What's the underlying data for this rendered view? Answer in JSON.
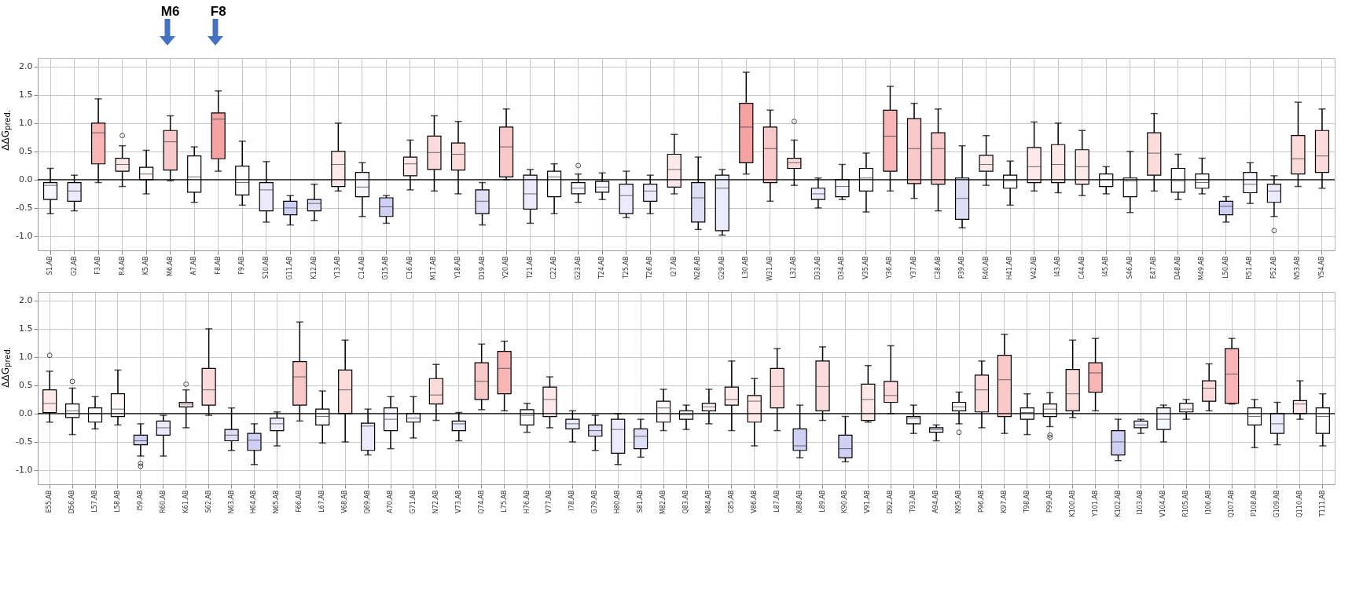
{
  "chart_data": [
    {
      "type": "box",
      "ylabel": "ΔΔG$_{pred.}$",
      "ylim": [
        -1.25,
        2.15
      ],
      "yticks": [
        {
          "value": -1,
          "label": "-1.0"
        },
        -0.5,
        {
          "value": 0,
          "label": "0.0"
        },
        0.5,
        {
          "value": 1,
          "label": "1.0"
        },
        1.5,
        {
          "value": 2,
          "label": "2.0"
        }
      ],
      "grid": true,
      "ref_lines": [
        {
          "axis": "y",
          "value": 0,
          "color": "#000000"
        }
      ],
      "annotations": [
        "M6",
        "F8"
      ],
      "categories": [
        "S1.AB",
        "G2.AB",
        "F3.AB",
        "R4.AB",
        "K5.AB",
        "M6.AB",
        "A7.AB",
        "F8.AB",
        "F9.AB",
        "S10.AB",
        "G11.AB",
        "K12.AB",
        "Y13.AB",
        "C14.AB",
        "G15.AB",
        "C16.AB",
        "M17.AB",
        "Y18.AB",
        "D19.AB",
        "Y20.AB",
        "T21.AB",
        "C22.AB",
        "G23.AB",
        "T24.AB",
        "T25.AB",
        "T26.AB",
        "I27.AB",
        "N28.AB",
        "G29.AB",
        "L30.AB",
        "W31.AB",
        "L32.AB",
        "D33.AB",
        "D34.AB",
        "V35.AB",
        "Y36.AB",
        "Y37.AB",
        "C38.AB",
        "P39.AB",
        "R40.AB",
        "H41.AB",
        "V42.AB",
        "I43.AB",
        "C44.AB",
        "I45.AB",
        "S46.AB",
        "E47.AB",
        "D48.AB",
        "M49.AB",
        "L50.AB",
        "R51.AB",
        "P52.AB",
        "N53.AB",
        "Y54.AB"
      ],
      "colors": [
        "#f6f6fd",
        "#ebebfb",
        "#f7b5b5",
        "#fde9e9",
        "#fdf7f7",
        "#f9c8c8",
        "#ffffff",
        "#f4a3a3",
        "#ffffff",
        "#ebebfb",
        "#d0d0f4",
        "#dedef7",
        "#fde9e9",
        "#f6f6fd",
        "#d0d0f4",
        "#fde9e9",
        "#fbdada",
        "#fbdada",
        "#dedef7",
        "#f9c8c8",
        "#ebebfb",
        "#ffffff",
        "#f6f6fd",
        "#f6f6fd",
        "#ebebfb",
        "#ebebfb",
        "#fde9e9",
        "#dedef7",
        "#ebebfb",
        "#f4a3a3",
        "#f9c8c8",
        "#fbdada",
        "#ebebfb",
        "#f6f6fd",
        "#ffffff",
        "#f7b5b5",
        "#f9c8c8",
        "#f9c8c8",
        "#dedef7",
        "#fde9e9",
        "#ffffff",
        "#fde9e9",
        "#fde9e9",
        "#fde9e9",
        "#ffffff",
        "#ffffff",
        "#fbdada",
        "#ffffff",
        "#ffffff",
        "#d0d0f4",
        "#f6f6fd",
        "#ebebfb",
        "#fbdada",
        "#fbdada"
      ],
      "boxes": [
        {
          "low": -0.6,
          "q1": -0.35,
          "median": -0.1,
          "q3": -0.05,
          "high": 0.2
        },
        {
          "low": -0.55,
          "q1": -0.38,
          "median": -0.2,
          "q3": -0.05,
          "high": 0.08
        },
        {
          "low": -0.05,
          "q1": 0.28,
          "median": 0.83,
          "q3": 1.0,
          "high": 1.43
        },
        {
          "low": -0.12,
          "q1": 0.15,
          "median": 0.27,
          "q3": 0.38,
          "high": 0.6,
          "outliers": [
            0.78
          ]
        },
        {
          "low": -0.25,
          "q1": 0.0,
          "median": 0.1,
          "q3": 0.22,
          "high": 0.52
        },
        {
          "low": -0.02,
          "q1": 0.17,
          "median": 0.67,
          "q3": 0.87,
          "high": 1.13
        },
        {
          "low": -0.4,
          "q1": -0.22,
          "median": 0.05,
          "q3": 0.42,
          "high": 0.58
        },
        {
          "low": 0.15,
          "q1": 0.37,
          "median": 1.07,
          "q3": 1.18,
          "high": 1.57
        },
        {
          "low": -0.45,
          "q1": -0.27,
          "median": -0.05,
          "q3": 0.24,
          "high": 0.68
        },
        {
          "low": -0.75,
          "q1": -0.55,
          "median": -0.18,
          "q3": -0.05,
          "high": 0.32
        },
        {
          "low": -0.8,
          "q1": -0.62,
          "median": -0.5,
          "q3": -0.38,
          "high": -0.28
        },
        {
          "low": -0.72,
          "q1": -0.55,
          "median": -0.42,
          "q3": -0.35,
          "high": -0.08
        },
        {
          "low": -0.2,
          "q1": -0.12,
          "median": 0.27,
          "q3": 0.5,
          "high": 1.0
        },
        {
          "low": -0.65,
          "q1": -0.3,
          "median": -0.13,
          "q3": 0.13,
          "high": 0.3
        },
        {
          "low": -0.77,
          "q1": -0.65,
          "median": -0.48,
          "q3": -0.32,
          "high": -0.28
        },
        {
          "low": -0.18,
          "q1": 0.07,
          "median": 0.28,
          "q3": 0.4,
          "high": 0.7
        },
        {
          "low": -0.2,
          "q1": 0.18,
          "median": 0.48,
          "q3": 0.77,
          "high": 1.13
        },
        {
          "low": -0.25,
          "q1": 0.17,
          "median": 0.45,
          "q3": 0.65,
          "high": 1.03
        },
        {
          "low": -0.8,
          "q1": -0.6,
          "median": -0.38,
          "q3": -0.18,
          "high": -0.05
        },
        {
          "low": 0.0,
          "q1": 0.05,
          "median": 0.58,
          "q3": 0.93,
          "high": 1.25
        },
        {
          "low": -0.77,
          "q1": -0.52,
          "median": -0.25,
          "q3": 0.08,
          "high": 0.18
        },
        {
          "low": -0.6,
          "q1": -0.3,
          "median": 0.05,
          "q3": 0.15,
          "high": 0.28
        },
        {
          "low": -0.4,
          "q1": -0.25,
          "median": -0.15,
          "q3": -0.05,
          "high": 0.1,
          "outliers": [
            0.25
          ]
        },
        {
          "low": -0.35,
          "q1": -0.22,
          "median": -0.13,
          "q3": -0.03,
          "high": 0.12
        },
        {
          "low": -0.67,
          "q1": -0.6,
          "median": -0.28,
          "q3": -0.08,
          "high": 0.15
        },
        {
          "low": -0.6,
          "q1": -0.38,
          "median": -0.2,
          "q3": -0.08,
          "high": 0.08
        },
        {
          "low": -0.25,
          "q1": -0.13,
          "median": 0.18,
          "q3": 0.45,
          "high": 0.8
        },
        {
          "low": -0.88,
          "q1": -0.75,
          "median": -0.32,
          "q3": -0.05,
          "high": 0.4
        },
        {
          "low": -0.98,
          "q1": -0.9,
          "median": -0.15,
          "q3": 0.08,
          "high": 0.18
        },
        {
          "low": 0.1,
          "q1": 0.3,
          "median": 0.93,
          "q3": 1.35,
          "high": 1.9
        },
        {
          "low": -0.38,
          "q1": -0.05,
          "median": 0.55,
          "q3": 0.93,
          "high": 1.23
        },
        {
          "low": -0.1,
          "q1": 0.2,
          "median": 0.3,
          "q3": 0.38,
          "high": 0.7,
          "outliers": [
            1.03
          ]
        },
        {
          "low": -0.5,
          "q1": -0.35,
          "median": -0.25,
          "q3": -0.15,
          "high": 0.03
        },
        {
          "low": -0.35,
          "q1": -0.3,
          "median": -0.12,
          "q3": 0.0,
          "high": 0.27
        },
        {
          "low": -0.57,
          "q1": -0.2,
          "median": 0.03,
          "q3": 0.2,
          "high": 0.47
        },
        {
          "low": -0.2,
          "q1": 0.15,
          "median": 0.77,
          "q3": 1.23,
          "high": 1.65
        },
        {
          "low": -0.33,
          "q1": -0.07,
          "median": 0.55,
          "q3": 1.08,
          "high": 1.35
        },
        {
          "low": -0.55,
          "q1": -0.08,
          "median": 0.55,
          "q3": 0.83,
          "high": 1.25
        },
        {
          "low": -0.85,
          "q1": -0.7,
          "median": -0.33,
          "q3": 0.03,
          "high": 0.6
        },
        {
          "low": -0.1,
          "q1": 0.15,
          "median": 0.27,
          "q3": 0.43,
          "high": 0.78
        },
        {
          "low": -0.45,
          "q1": -0.15,
          "median": -0.02,
          "q3": 0.08,
          "high": 0.33
        },
        {
          "low": -0.2,
          "q1": -0.05,
          "median": 0.23,
          "q3": 0.57,
          "high": 1.02
        },
        {
          "low": -0.23,
          "q1": -0.05,
          "median": 0.27,
          "q3": 0.62,
          "high": 1.0
        },
        {
          "low": -0.28,
          "q1": -0.08,
          "median": 0.23,
          "q3": 0.53,
          "high": 0.87
        },
        {
          "low": -0.25,
          "q1": -0.12,
          "median": 0.0,
          "q3": 0.1,
          "high": 0.23
        },
        {
          "low": -0.58,
          "q1": -0.3,
          "median": -0.02,
          "q3": 0.03,
          "high": 0.5
        },
        {
          "low": -0.2,
          "q1": 0.08,
          "median": 0.47,
          "q3": 0.83,
          "high": 1.17
        },
        {
          "low": -0.35,
          "q1": -0.22,
          "median": -0.02,
          "q3": 0.2,
          "high": 0.45
        },
        {
          "low": -0.25,
          "q1": -0.15,
          "median": -0.05,
          "q3": 0.1,
          "high": 0.38
        },
        {
          "low": -0.75,
          "q1": -0.62,
          "median": -0.47,
          "q3": -0.38,
          "high": -0.3
        },
        {
          "low": -0.42,
          "q1": -0.23,
          "median": -0.08,
          "q3": 0.13,
          "high": 0.3
        },
        {
          "low": -0.65,
          "q1": -0.4,
          "median": -0.2,
          "q3": -0.08,
          "high": 0.07,
          "outliers": [
            -0.9
          ]
        },
        {
          "low": -0.12,
          "q1": 0.1,
          "median": 0.37,
          "q3": 0.78,
          "high": 1.37
        },
        {
          "low": -0.15,
          "q1": 0.13,
          "median": 0.42,
          "q3": 0.87,
          "high": 1.25
        }
      ]
    },
    {
      "type": "box",
      "ylabel": "ΔΔG$_{pred.}$",
      "ylim": [
        -1.25,
        2.15
      ],
      "yticks": [
        {
          "value": -1,
          "label": "-1.0"
        },
        -0.5,
        {
          "value": 0,
          "label": "0.0"
        },
        0.5,
        {
          "value": 1,
          "label": "1.0"
        },
        1.5,
        {
          "value": 2,
          "label": "2.0"
        }
      ],
      "grid": true,
      "ref_lines": [
        {
          "axis": "y",
          "value": 0,
          "color": "#000000"
        }
      ],
      "categories": [
        "E55.AB",
        "D56.AB",
        "L57.AB",
        "L58.AB",
        "I59.AB",
        "R60.AB",
        "K61.AB",
        "S62.AB",
        "N63.AB",
        "H64.AB",
        "N65.AB",
        "F66.AB",
        "L67.AB",
        "V68.AB",
        "Q69.AB",
        "A70.AB",
        "G71.AB",
        "N72.AB",
        "V73.AB",
        "Q74.AB",
        "L75.AB",
        "H76.AB",
        "V77.AB",
        "I78.AB",
        "G79.AB",
        "H80.AB",
        "S81.AB",
        "M82.AB",
        "Q83.AB",
        "N84.AB",
        "C85.AB",
        "V86.AB",
        "L87.AB",
        "K88.AB",
        "L89.AB",
        "K90.AB",
        "V91.AB",
        "D92.AB",
        "T93.AB",
        "A94.AB",
        "N95.AB",
        "P96.AB",
        "K97.AB",
        "T98.AB",
        "P99.AB",
        "K100.AB",
        "Y101.AB",
        "K102.AB",
        "I103.AB",
        "V104.AB",
        "R105.AB",
        "I106.AB",
        "Q107.AB",
        "P108.AB",
        "G109.AB",
        "Q110.AB",
        "T111.AB"
      ],
      "colors": [
        "#fde9e9",
        "#ffffff",
        "#ffffff",
        "#fdf7f7",
        "#d0d0f4",
        "#ebebfb",
        "#fde9e9",
        "#fbdada",
        "#dedef7",
        "#d0d0f4",
        "#ebebfb",
        "#f9c8c8",
        "#ffffff",
        "#fbdada",
        "#ebebfb",
        "#f6f6fd",
        "#f6f6fd",
        "#fbdada",
        "#ebebfb",
        "#f9c8c8",
        "#f7b5b5",
        "#ffffff",
        "#fde9e9",
        "#ebebfb",
        "#dedef7",
        "#ebebfb",
        "#dedef7",
        "#fdf7f7",
        "#ffffff",
        "#fdf7f7",
        "#fde9e9",
        "#fde9e9",
        "#fbdada",
        "#d0d0f4",
        "#fbdada",
        "#d0d0f4",
        "#fde9e9",
        "#fbdada",
        "#f6f6fd",
        "#ebebfb",
        "#fdf7f7",
        "#fbdada",
        "#f9c8c8",
        "#ffffff",
        "#fdf7f7",
        "#fbdada",
        "#f7b5b5",
        "#d0d0f4",
        "#ebebfb",
        "#f6f6fd",
        "#fdf7f7",
        "#fbdada",
        "#f7b5b5",
        "#ffffff",
        "#ebebfb",
        "#fde9e9",
        "#ffffff"
      ],
      "boxes": [
        {
          "low": -0.15,
          "q1": 0.02,
          "median": 0.18,
          "q3": 0.42,
          "high": 0.75,
          "outliers": [
            1.03
          ]
        },
        {
          "low": -0.37,
          "q1": -0.07,
          "median": 0.05,
          "q3": 0.17,
          "high": 0.45,
          "outliers": [
            0.57
          ]
        },
        {
          "low": -0.27,
          "q1": -0.15,
          "median": 0.0,
          "q3": 0.1,
          "high": 0.3
        },
        {
          "low": -0.2,
          "q1": -0.05,
          "median": 0.08,
          "q3": 0.35,
          "high": 0.77
        },
        {
          "low": -0.75,
          "q1": -0.55,
          "median": -0.48,
          "q3": -0.38,
          "high": -0.18,
          "outliers": [
            -0.88,
            -0.93
          ]
        },
        {
          "low": -0.75,
          "q1": -0.38,
          "median": -0.25,
          "q3": -0.13,
          "high": -0.03
        },
        {
          "low": -0.25,
          "q1": 0.12,
          "median": 0.17,
          "q3": 0.2,
          "high": 0.42,
          "outliers": [
            0.52
          ]
        },
        {
          "low": -0.03,
          "q1": 0.15,
          "median": 0.42,
          "q3": 0.8,
          "high": 1.5
        },
        {
          "low": -0.65,
          "q1": -0.48,
          "median": -0.38,
          "q3": -0.28,
          "high": 0.1
        },
        {
          "low": -0.9,
          "q1": -0.65,
          "median": -0.47,
          "q3": -0.35,
          "high": -0.18
        },
        {
          "low": -0.57,
          "q1": -0.3,
          "median": -0.18,
          "q3": -0.08,
          "high": 0.03
        },
        {
          "low": -0.13,
          "q1": 0.15,
          "median": 0.65,
          "q3": 0.92,
          "high": 1.62
        },
        {
          "low": -0.52,
          "q1": -0.2,
          "median": -0.05,
          "q3": 0.08,
          "high": 0.4
        },
        {
          "low": -0.5,
          "q1": 0.0,
          "median": 0.42,
          "q3": 0.77,
          "high": 1.3
        },
        {
          "low": -0.73,
          "q1": -0.65,
          "median": -0.22,
          "q3": -0.17,
          "high": 0.08
        },
        {
          "low": -0.62,
          "q1": -0.3,
          "median": -0.1,
          "q3": 0.1,
          "high": 0.3
        },
        {
          "low": -0.43,
          "q1": -0.15,
          "median": -0.08,
          "q3": 0.0,
          "high": 0.3
        },
        {
          "low": -0.12,
          "q1": 0.17,
          "median": 0.33,
          "q3": 0.62,
          "high": 0.87
        },
        {
          "low": -0.48,
          "q1": -0.3,
          "median": -0.18,
          "q3": -0.13,
          "high": 0.02
        },
        {
          "low": 0.07,
          "q1": 0.25,
          "median": 0.57,
          "q3": 0.9,
          "high": 1.23
        },
        {
          "low": 0.05,
          "q1": 0.35,
          "median": 0.8,
          "q3": 1.1,
          "high": 1.28
        },
        {
          "low": -0.33,
          "q1": -0.2,
          "median": -0.03,
          "q3": 0.07,
          "high": 0.18
        },
        {
          "low": -0.25,
          "q1": -0.05,
          "median": 0.25,
          "q3": 0.47,
          "high": 0.65
        },
        {
          "low": -0.5,
          "q1": -0.27,
          "median": -0.18,
          "q3": -0.1,
          "high": 0.05
        },
        {
          "low": -0.65,
          "q1": -0.4,
          "median": -0.3,
          "q3": -0.2,
          "high": -0.03
        },
        {
          "low": -0.9,
          "q1": -0.7,
          "median": -0.28,
          "q3": -0.1,
          "high": 0.0
        },
        {
          "low": -0.77,
          "q1": -0.62,
          "median": -0.4,
          "q3": -0.27,
          "high": -0.1
        },
        {
          "low": -0.3,
          "q1": -0.15,
          "median": 0.1,
          "q3": 0.22,
          "high": 0.43
        },
        {
          "low": -0.28,
          "q1": -0.1,
          "median": -0.02,
          "q3": 0.05,
          "high": 0.15
        },
        {
          "low": -0.18,
          "q1": 0.05,
          "median": 0.12,
          "q3": 0.18,
          "high": 0.43
        },
        {
          "low": -0.3,
          "q1": 0.15,
          "median": 0.25,
          "q3": 0.47,
          "high": 0.93
        },
        {
          "low": -0.57,
          "q1": -0.15,
          "median": 0.22,
          "q3": 0.32,
          "high": 0.62
        },
        {
          "low": -0.3,
          "q1": 0.1,
          "median": 0.48,
          "q3": 0.8,
          "high": 1.15
        },
        {
          "low": -0.78,
          "q1": -0.65,
          "median": -0.57,
          "q3": -0.27,
          "high": 0.15
        },
        {
          "low": -0.12,
          "q1": 0.05,
          "median": 0.48,
          "q3": 0.93,
          "high": 1.18
        },
        {
          "low": -0.85,
          "q1": -0.78,
          "median": -0.62,
          "q3": -0.38,
          "high": -0.05
        },
        {
          "low": -0.15,
          "q1": -0.12,
          "median": 0.25,
          "q3": 0.52,
          "high": 0.85
        },
        {
          "low": 0.0,
          "q1": 0.2,
          "median": 0.32,
          "q3": 0.57,
          "high": 1.2
        },
        {
          "low": -0.35,
          "q1": -0.18,
          "median": -0.08,
          "q3": -0.05,
          "high": 0.15
        },
        {
          "low": -0.48,
          "q1": -0.33,
          "median": -0.28,
          "q3": -0.25,
          "high": -0.2
        },
        {
          "low": -0.18,
          "q1": 0.05,
          "median": 0.12,
          "q3": 0.2,
          "high": 0.38,
          "outliers": [
            -0.33
          ]
        },
        {
          "low": -0.25,
          "q1": 0.03,
          "median": 0.42,
          "q3": 0.68,
          "high": 0.93
        },
        {
          "low": -0.35,
          "q1": -0.05,
          "median": 0.6,
          "q3": 1.03,
          "high": 1.4
        },
        {
          "low": -0.37,
          "q1": -0.1,
          "median": 0.02,
          "q3": 0.1,
          "high": 0.35
        },
        {
          "low": -0.23,
          "q1": -0.05,
          "median": 0.08,
          "q3": 0.17,
          "high": 0.37,
          "outliers": [
            -0.38,
            -0.42
          ]
        },
        {
          "low": -0.07,
          "q1": 0.05,
          "median": 0.35,
          "q3": 0.78,
          "high": 1.3
        },
        {
          "low": 0.05,
          "q1": 0.38,
          "median": 0.72,
          "q3": 0.9,
          "high": 1.33
        },
        {
          "low": -0.83,
          "q1": -0.73,
          "median": -0.5,
          "q3": -0.3,
          "high": -0.1
        },
        {
          "low": -0.35,
          "q1": -0.25,
          "median": -0.2,
          "q3": -0.13,
          "high": -0.1
        },
        {
          "low": -0.5,
          "q1": -0.28,
          "median": -0.1,
          "q3": 0.1,
          "high": 0.15
        },
        {
          "low": -0.1,
          "q1": 0.03,
          "median": 0.08,
          "q3": 0.18,
          "high": 0.25
        },
        {
          "low": 0.05,
          "q1": 0.22,
          "median": 0.45,
          "q3": 0.58,
          "high": 0.88
        },
        {
          "low": 0.17,
          "q1": 0.18,
          "median": 0.7,
          "q3": 1.15,
          "high": 1.33
        },
        {
          "low": -0.6,
          "q1": -0.2,
          "median": -0.05,
          "q3": 0.1,
          "high": 0.25
        },
        {
          "low": -0.55,
          "q1": -0.35,
          "median": -0.18,
          "q3": 0.0,
          "high": 0.2
        },
        {
          "low": -0.1,
          "q1": 0.0,
          "median": 0.17,
          "q3": 0.23,
          "high": 0.58
        },
        {
          "low": -0.57,
          "q1": -0.35,
          "median": -0.05,
          "q3": 0.1,
          "high": 0.35
        }
      ]
    }
  ]
}
